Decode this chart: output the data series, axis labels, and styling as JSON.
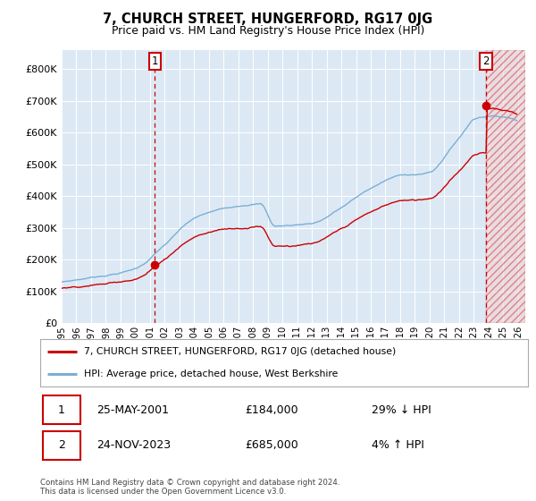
{
  "title": "7, CHURCH STREET, HUNGERFORD, RG17 0JG",
  "subtitle": "Price paid vs. HM Land Registry's House Price Index (HPI)",
  "hpi_color": "#7bafd4",
  "price_color": "#cc0000",
  "sale1_label": "25-MAY-2001",
  "sale1_price": 184000,
  "sale1_hpi_pct": "29% ↓ HPI",
  "sale2_label": "24-NOV-2023",
  "sale2_price": 685000,
  "sale2_hpi_pct": "4% ↑ HPI",
  "yticks": [
    0,
    100000,
    200000,
    300000,
    400000,
    500000,
    600000,
    700000,
    800000
  ],
  "ylim": [
    0,
    860000
  ],
  "xlim_start": 1995.0,
  "xlim_end": 2026.5,
  "plot_bg_color": "#dce9f5",
  "grid_color": "#ffffff",
  "legend_line1": "7, CHURCH STREET, HUNGERFORD, RG17 0JG (detached house)",
  "legend_line2": "HPI: Average price, detached house, West Berkshire",
  "footnote": "Contains HM Land Registry data © Crown copyright and database right 2024.\nThis data is licensed under the Open Government Licence v3.0.",
  "hatching_color": "#cc0000"
}
